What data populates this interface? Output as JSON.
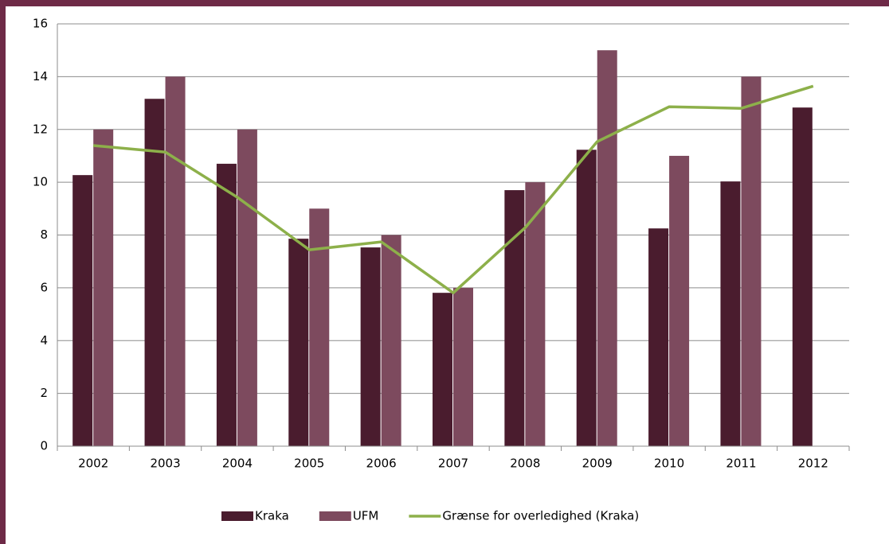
{
  "chart_data": {
    "type": "bar",
    "categories": [
      "2002",
      "2003",
      "2004",
      "2005",
      "2006",
      "2007",
      "2008",
      "2009",
      "2010",
      "2011",
      "2012"
    ],
    "series": [
      {
        "name": "Kraka",
        "color": "#4a1c2e",
        "values": [
          10.27,
          13.16,
          10.7,
          7.86,
          7.53,
          5.81,
          9.7,
          11.23,
          8.25,
          10.03,
          12.83
        ]
      },
      {
        "name": "UFM",
        "color": "#7d4a5e",
        "values": [
          12,
          14,
          12,
          9,
          8,
          6,
          10,
          15,
          11,
          14,
          null
        ]
      },
      {
        "name": "Grænse for overledighed (Kraka)",
        "color": "#8db04a",
        "type": "line",
        "values": [
          11.39,
          11.14,
          9.43,
          7.44,
          7.74,
          5.81,
          8.28,
          11.54,
          12.86,
          12.8,
          13.64
        ]
      }
    ],
    "ylim": [
      0,
      16
    ],
    "yticks": [
      0,
      2,
      4,
      6,
      8,
      10,
      12,
      14,
      16
    ],
    "grid": true,
    "legend": "bottom"
  }
}
